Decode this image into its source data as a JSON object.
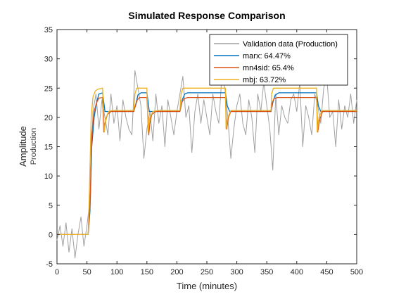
{
  "chart_data": {
    "type": "line",
    "title": "Simulated Response Comparison",
    "xlabel": "Time (minutes)",
    "ylabel": "Amplitude",
    "ylabel_sub": "Production",
    "xlim": [
      0,
      500
    ],
    "ylim": [
      -5,
      35
    ],
    "xticks": [
      0,
      50,
      100,
      150,
      200,
      250,
      300,
      350,
      400,
      450,
      500
    ],
    "yticks": [
      -5,
      0,
      5,
      10,
      15,
      20,
      25,
      30,
      35
    ],
    "grid": false,
    "legend_position": "top-right",
    "series": [
      {
        "name": "Validation data (Production)",
        "color": "#a0a0a0",
        "x": [
          0,
          5,
          10,
          15,
          20,
          25,
          30,
          35,
          40,
          45,
          50,
          55,
          60,
          65,
          70,
          75,
          80,
          85,
          90,
          95,
          100,
          105,
          110,
          115,
          120,
          125,
          130,
          135,
          140,
          145,
          150,
          155,
          160,
          165,
          170,
          175,
          180,
          185,
          190,
          195,
          200,
          205,
          210,
          215,
          220,
          225,
          230,
          235,
          240,
          245,
          250,
          255,
          260,
          265,
          270,
          275,
          280,
          285,
          290,
          295,
          300,
          305,
          310,
          315,
          320,
          325,
          330,
          335,
          340,
          345,
          350,
          355,
          360,
          365,
          370,
          375,
          380,
          385,
          390,
          395,
          400,
          405,
          410,
          415,
          420,
          425,
          430,
          435,
          440,
          445,
          450,
          455,
          460,
          465,
          470,
          475,
          480,
          485,
          490,
          495,
          500
        ],
        "values": [
          -1,
          1.5,
          -2,
          2,
          -3,
          1,
          -4,
          0,
          3,
          -2,
          1.5,
          6,
          21,
          24,
          18,
          23,
          20,
          17,
          24,
          19,
          22,
          16,
          23,
          20,
          18,
          17,
          28,
          25,
          22,
          13,
          18,
          21,
          16,
          24,
          19,
          22,
          15,
          23,
          20,
          17,
          21,
          24,
          27,
          20,
          22,
          14,
          21,
          24,
          19,
          23,
          20,
          17,
          24,
          21,
          19,
          27,
          25,
          20,
          13,
          18,
          22,
          24,
          19,
          17,
          23,
          20,
          14,
          24,
          21,
          26,
          22,
          18,
          11,
          24,
          17,
          22,
          20,
          19,
          23,
          24,
          21,
          26,
          15,
          22,
          20,
          17,
          24,
          22,
          19,
          25,
          27,
          20,
          21,
          15,
          23,
          18,
          22,
          20,
          24,
          19,
          23
        ]
      },
      {
        "name": "marx: 64.47%",
        "color": "#0072bd",
        "x": [
          0,
          52,
          55,
          58,
          62,
          66,
          70,
          76,
          80,
          90,
          110,
          128,
          132,
          135,
          140,
          145,
          150,
          154,
          158,
          165,
          180,
          205,
          209,
          213,
          218,
          225,
          235,
          258,
          281,
          284,
          288,
          293,
          300,
          310,
          334,
          357,
          360,
          364,
          370,
          380,
          405,
          433,
          436,
          440,
          446,
          455,
          470,
          500
        ],
        "values": [
          0,
          0,
          4,
          15,
          20,
          22.5,
          24,
          24.2,
          21,
          21,
          21,
          21,
          22.5,
          23.8,
          24.2,
          24.2,
          24.2,
          21,
          21,
          21,
          21,
          21,
          23,
          24,
          24.2,
          24.2,
          24.2,
          24.2,
          24.2,
          22,
          21,
          21,
          21,
          21,
          21,
          21,
          22.5,
          23.8,
          24.2,
          24.2,
          24.2,
          24.2,
          22,
          21,
          21,
          21,
          21,
          21
        ]
      },
      {
        "name": "mn4sid: 65.4%",
        "color": "#d95319",
        "x": [
          0,
          52,
          55,
          58,
          62,
          66,
          70,
          76,
          78,
          80,
          84,
          90,
          110,
          128,
          131,
          134,
          138,
          145,
          150,
          153,
          155,
          158,
          165,
          180,
          205,
          208,
          212,
          218,
          225,
          235,
          258,
          281,
          283,
          286,
          290,
          300,
          310,
          334,
          357,
          359,
          362,
          368,
          380,
          405,
          433,
          435,
          438,
          443,
          450,
          470,
          500
        ],
        "values": [
          0,
          0,
          5,
          17,
          21,
          22.5,
          23.3,
          23.4,
          17.5,
          19,
          20.5,
          21,
          21,
          21,
          22,
          23,
          23.4,
          23.4,
          23.4,
          17,
          19,
          20.5,
          21,
          21,
          21,
          22.5,
          23.2,
          23.4,
          23.4,
          23.4,
          23.4,
          23.4,
          18,
          20,
          21,
          21,
          21,
          21,
          21,
          22.5,
          23.2,
          23.4,
          23.4,
          23.4,
          23.4,
          17.5,
          19.5,
          21,
          21,
          21,
          21
        ]
      },
      {
        "name": "mbj: 63.72%",
        "color": "#edb120",
        "x": [
          0,
          52,
          54,
          57,
          60,
          64,
          68,
          76,
          79,
          82,
          86,
          92,
          110,
          128,
          130,
          133,
          137,
          145,
          150,
          152,
          155,
          160,
          170,
          180,
          205,
          207,
          210,
          214,
          225,
          235,
          258,
          281,
          282,
          285,
          290,
          300,
          310,
          334,
          357,
          358,
          361,
          366,
          380,
          405,
          433,
          434,
          437,
          442,
          450,
          470,
          500
        ],
        "values": [
          0,
          0,
          7,
          20,
          23.5,
          24.5,
          24.8,
          25,
          17.5,
          20,
          21,
          21.2,
          21.2,
          21.2,
          24,
          25,
          25,
          25,
          25,
          17.5,
          20,
          21,
          21.2,
          21.2,
          21.2,
          24,
          25,
          25,
          25,
          25,
          25,
          25,
          18,
          20,
          21.2,
          21.2,
          21.2,
          21.2,
          21.2,
          24,
          25,
          25,
          25,
          25,
          25,
          17.5,
          20,
          21.2,
          21.2,
          21.2,
          21.2
        ]
      }
    ]
  }
}
